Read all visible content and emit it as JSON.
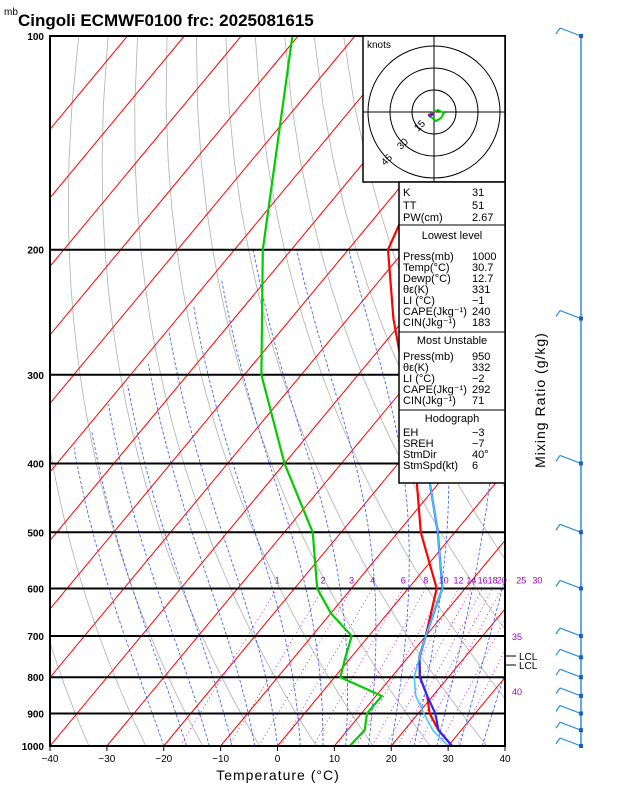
{
  "title": "Cingoli ECMWF0100  frc: 2025081615",
  "pressure_unit": "mb",
  "axes": {
    "xlabel": "Temperature (°C)",
    "right_label": "Mixing Ratio (g/kg)",
    "x_ticks": [
      "−40",
      "−30",
      "−20",
      "−10",
      "0",
      "10",
      "20",
      "30",
      "40"
    ],
    "p_ticks": [
      "100",
      "200",
      "300",
      "400",
      "500",
      "600",
      "700",
      "800",
      "900",
      "1000"
    ]
  },
  "mixing_ratio_labels": [
    "1",
    "2",
    "3",
    "4",
    "6",
    "8",
    "10",
    "12",
    "14",
    "16",
    "18",
    "20",
    "25",
    "30"
  ],
  "theta_e_labels": [
    "35",
    "40"
  ],
  "lcl_labels": [
    "LCL",
    "LCL"
  ],
  "hodograph": {
    "unit_label": "knots",
    "ring_labels": [
      "15",
      "30",
      "45"
    ]
  },
  "indices": {
    "top": [
      {
        "k": "K",
        "v": "31"
      },
      {
        "k": "TT",
        "v": "51"
      },
      {
        "k": "PW(cm)",
        "v": "2.67"
      }
    ],
    "lowest_header": "Lowest level",
    "lowest": [
      {
        "k": "Press(mb)",
        "v": "1000"
      },
      {
        "k": "Temp(°C)",
        "v": "30.7"
      },
      {
        "k": "Dewp(°C)",
        "v": "12.7"
      },
      {
        "k": "θε(K)",
        "v": "331"
      },
      {
        "k": "LI (°C)",
        "v": "−1"
      },
      {
        "k": "CAPE(Jkg⁻¹)",
        "v": "240"
      },
      {
        "k": "CIN(Jkg⁻¹)",
        "v": "183"
      }
    ],
    "unstable_header": "Most Unstable",
    "unstable": [
      {
        "k": "Press(mb)",
        "v": "950"
      },
      {
        "k": "θε(K)",
        "v": "332"
      },
      {
        "k": "LI (°C)",
        "v": "−2"
      },
      {
        "k": "CAPE(Jkg⁻¹)",
        "v": "292"
      },
      {
        "k": "CIN(Jkg⁻¹)",
        "v": "71"
      }
    ],
    "hodo_header": "Hodograph",
    "hodo": [
      {
        "k": "EH",
        "v": "−3"
      },
      {
        "k": "SREH",
        "v": "−7"
      },
      {
        "k": "StmDir",
        "v": "40°"
      },
      {
        "k": "StmSpd(kt)",
        "v": "6"
      }
    ]
  },
  "colors": {
    "temperature": "#ff0000",
    "dewpoint": "#00cc00",
    "parcel": "#2a2aff",
    "virtual": "#3fc8ff",
    "isotherm": "#ff0000",
    "dry_adiabat": "#b0b0b0",
    "moist_adiabat": "#3355ff",
    "mixing_ratio": "#cc00cc",
    "wind": "#2a8fe0"
  },
  "chart_data": {
    "type": "skew-t log-p",
    "xlabel": "Temperature (°C)",
    "xlim": [
      -40,
      40
    ],
    "ylim_pressure": [
      1000,
      100
    ],
    "y_scale": "log",
    "grid": true,
    "series": [
      {
        "name": "temperature",
        "pressure": [
          1000,
          950,
          900,
          850,
          800,
          750,
          700,
          600,
          500,
          400,
          300,
          250,
          200,
          150,
          100
        ],
        "temp_c": [
          30.7,
          26,
          22,
          19,
          15,
          12,
          10,
          5,
          -6,
          -17,
          -32,
          -42,
          -53,
          -59,
          -59
        ]
      },
      {
        "name": "dewpoint",
        "pressure": [
          1000,
          950,
          900,
          850,
          800,
          750,
          700,
          650,
          600,
          500,
          400,
          300,
          200,
          100
        ],
        "temp_c": [
          12.7,
          13,
          11,
          11,
          1,
          -1,
          -3,
          -10,
          -16,
          -25,
          -40,
          -57,
          -75,
          -101
        ]
      },
      {
        "name": "parcel",
        "pressure": [
          1000,
          950,
          900,
          850,
          800,
          750,
          700,
          600,
          500,
          400,
          300,
          200,
          120
        ],
        "temp_c": [
          30.7,
          26,
          23,
          19,
          15,
          12,
          10,
          6,
          -3,
          -15,
          -29,
          -50,
          -71
        ]
      },
      {
        "name": "virtual parcel",
        "pressure": [
          1000,
          950,
          900,
          850,
          800,
          750,
          700,
          600,
          500,
          400,
          300,
          200,
          100
        ],
        "temp_c": [
          30,
          25,
          21,
          17,
          14,
          12,
          10,
          6,
          -3,
          -15,
          -29,
          -50,
          -80
        ]
      }
    ],
    "mixing_ratio_values_gkg": [
      1,
      2,
      3,
      4,
      6,
      8,
      10,
      12,
      14,
      16,
      18,
      20,
      25,
      30
    ],
    "wind_barbs_pressure": [
      100,
      250,
      400,
      500,
      600,
      700,
      750,
      800,
      850,
      900,
      950,
      1000
    ]
  }
}
